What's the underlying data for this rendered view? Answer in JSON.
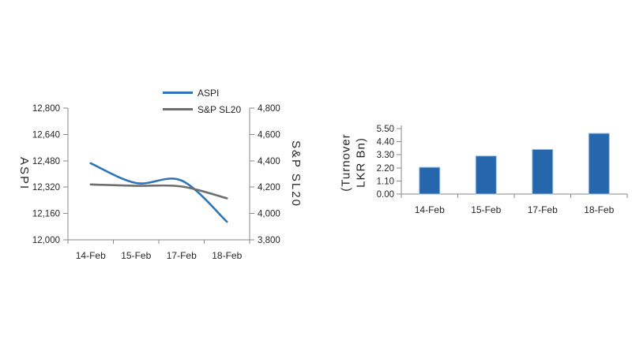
{
  "page": {
    "background": "#FFFFFF"
  },
  "colors": {
    "axis": "#898989",
    "text": "#262626",
    "aspi_line": "#2E75B6",
    "spsl20_line": "#6E6E6E",
    "bar_fill": "#2566AD",
    "bar_border": "#9CC3E6"
  },
  "chart_data": [
    {
      "type": "line",
      "title": "",
      "categories": [
        "14-Feb",
        "15-Feb",
        "17-Feb",
        "18-Feb"
      ],
      "series": [
        {
          "name": "ASPI",
          "axis": "left",
          "color": "#2E75B6",
          "values": [
            12465,
            12345,
            12360,
            12110
          ]
        },
        {
          "name": "S&P SL20",
          "axis": "right",
          "color": "#6E6E6E",
          "values": [
            4220,
            4210,
            4205,
            4115
          ]
        }
      ],
      "left_axis": {
        "label": "ASPI",
        "min": 12000,
        "max": 12800,
        "tick_step": 160,
        "ticks": [
          "12,800",
          "12,640",
          "12,480",
          "12,320",
          "12,160",
          "12,000"
        ]
      },
      "right_axis": {
        "label": "S&P SL20",
        "min": 3800,
        "max": 4800,
        "tick_step": 200,
        "ticks": [
          "4,800",
          "4,600",
          "4,400",
          "4,200",
          "4,000",
          "3,800"
        ]
      },
      "legend_position": "top",
      "grid": false,
      "smooth_lines": true
    },
    {
      "type": "bar",
      "title": "",
      "categories": [
        "14-Feb",
        "15-Feb",
        "17-Feb",
        "18-Feb"
      ],
      "values": [
        2.25,
        3.2,
        3.75,
        5.1
      ],
      "ylabel": "(Turnover LKR Bn)",
      "xlabel": "",
      "ylim": [
        0,
        5.5
      ],
      "tick_step": 1.1,
      "yticks": [
        "5.50",
        "4.40",
        "3.30",
        "2.20",
        "1.10",
        "0.00"
      ],
      "grid": false,
      "legend_position": "none"
    }
  ]
}
